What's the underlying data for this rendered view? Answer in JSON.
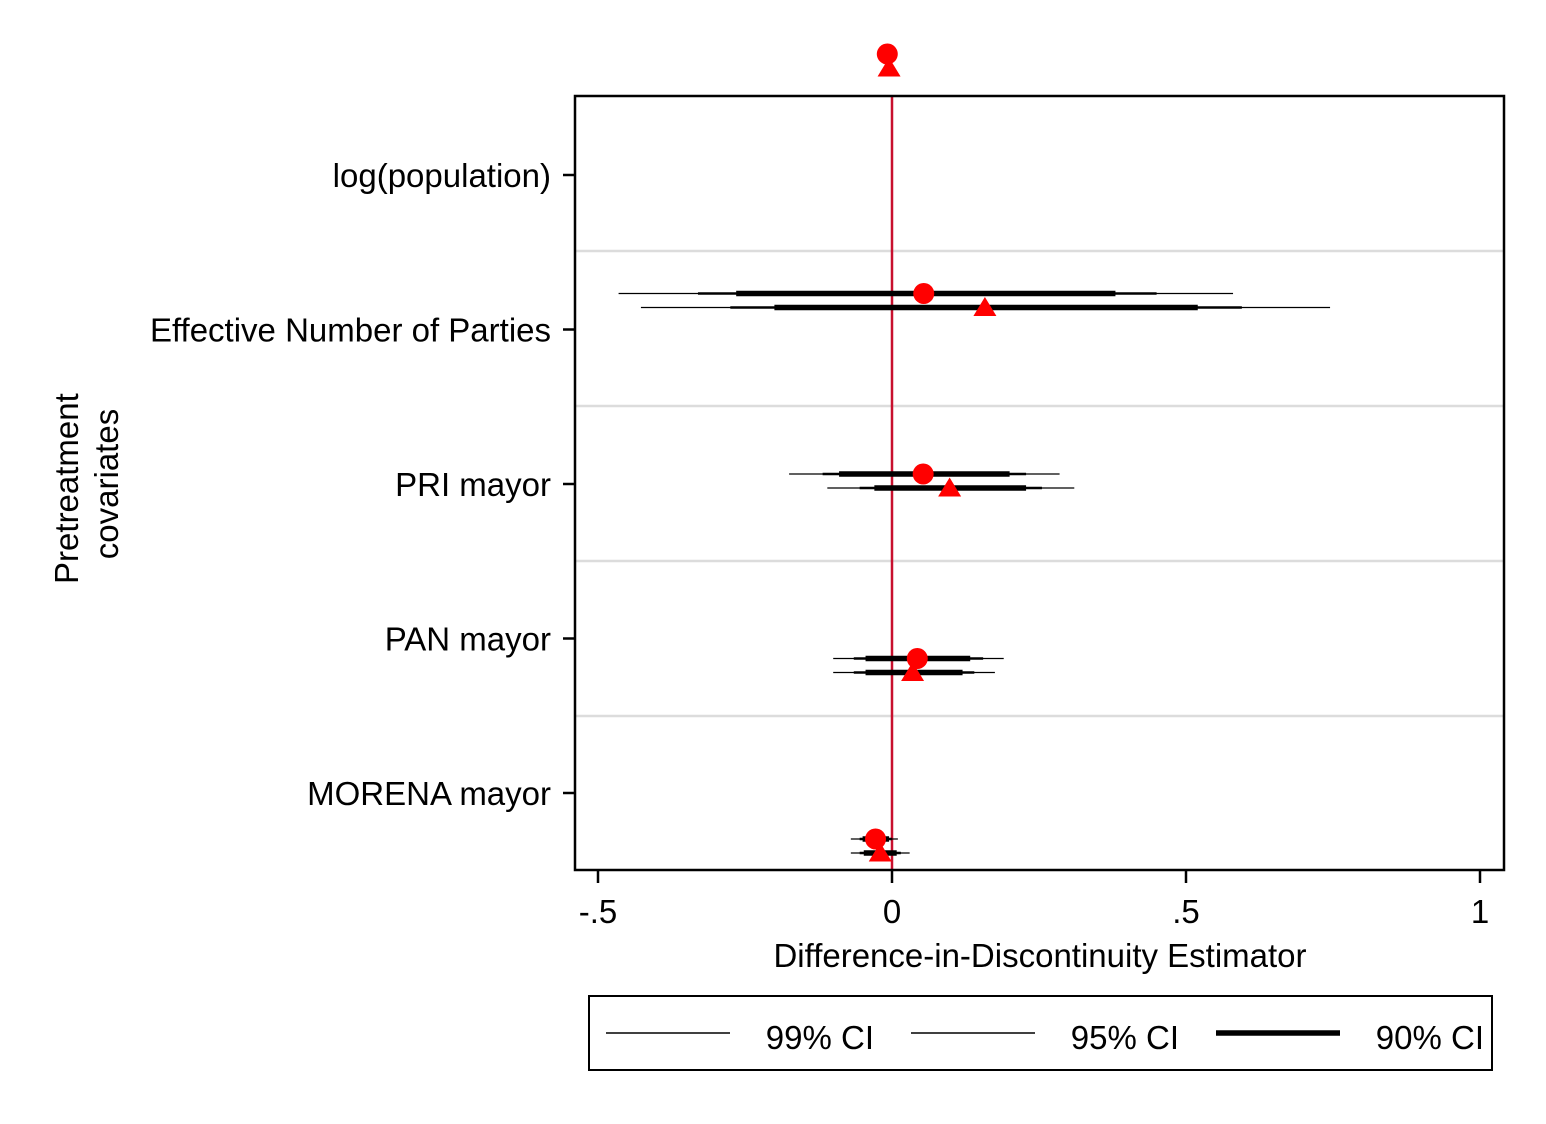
{
  "chart_data": {
    "type": "scatter",
    "subtype": "coefficient-plot",
    "xlabel": "Difference-in-Discontinuity Estimator",
    "ylabel_lines": [
      "Pretreatment",
      "covariates"
    ],
    "xlim": [
      -0.54,
      1.04
    ],
    "x_ticks": [
      {
        "value": -0.5,
        "label": "-.5"
      },
      {
        "value": 0,
        "label": "0"
      },
      {
        "value": 0.5,
        "label": ".5"
      },
      {
        "value": 1,
        "label": "1"
      }
    ],
    "reference_line": {
      "x": 0,
      "color": "#c8102e"
    },
    "marker_color": "#ff0000",
    "gridlines": true,
    "categories": [
      "log(population)",
      "Effective Number of Parties",
      "PRI mayor",
      "PAN mayor",
      "MORENA mayor"
    ],
    "series": [
      {
        "marker": "circle",
        "estimates": [
          {
            "category": "log(population)",
            "est": -0.008,
            "ci90": [
              -0.01,
              -0.006
            ],
            "ci95": [
              -0.011,
              -0.005
            ],
            "ci99": [
              -0.013,
              -0.003
            ]
          },
          {
            "category": "Effective Number of Parties",
            "est": 0.054,
            "ci90": [
              -0.265,
              0.38
            ],
            "ci95": [
              -0.33,
              0.45
            ],
            "ci99": [
              -0.465,
              0.58
            ]
          },
          {
            "category": "PRI mayor",
            "est": 0.053,
            "ci90": [
              -0.09,
              0.2
            ],
            "ci95": [
              -0.118,
              0.228
            ],
            "ci99": [
              -0.175,
              0.285
            ]
          },
          {
            "category": "PAN mayor",
            "est": 0.043,
            "ci90": [
              -0.045,
              0.133
            ],
            "ci95": [
              -0.065,
              0.155
            ],
            "ci99": [
              -0.1,
              0.19
            ]
          },
          {
            "category": "MORENA mayor",
            "est": -0.028,
            "ci90": [
              -0.05,
              -0.005
            ],
            "ci95": [
              -0.055,
              0.0
            ],
            "ci99": [
              -0.07,
              0.01
            ]
          }
        ]
      },
      {
        "marker": "triangle",
        "estimates": [
          {
            "category": "log(population)",
            "est": -0.005,
            "ci90": [
              -0.007,
              -0.003
            ],
            "ci95": [
              -0.008,
              -0.002
            ],
            "ci99": [
              -0.009,
              -0.001
            ]
          },
          {
            "category": "Effective Number of Parties",
            "est": 0.158,
            "ci90": [
              -0.2,
              0.52
            ],
            "ci95": [
              -0.275,
              0.595
            ],
            "ci99": [
              -0.427,
              0.745
            ]
          },
          {
            "category": "PRI mayor",
            "est": 0.098,
            "ci90": [
              -0.03,
              0.228
            ],
            "ci95": [
              -0.055,
              0.255
            ],
            "ci99": [
              -0.11,
              0.31
            ]
          },
          {
            "category": "PAN mayor",
            "est": 0.035,
            "ci90": [
              -0.045,
              0.12
            ],
            "ci95": [
              -0.065,
              0.14
            ],
            "ci99": [
              -0.1,
              0.175
            ]
          },
          {
            "category": "MORENA mayor",
            "est": -0.02,
            "ci90": [
              -0.048,
              0.008
            ],
            "ci95": [
              -0.055,
              0.015
            ],
            "ci99": [
              -0.07,
              0.03
            ]
          }
        ]
      }
    ],
    "legend": {
      "placement": "bottom",
      "entries": [
        {
          "label": "99% CI",
          "weight": "thin"
        },
        {
          "label": "95% CI",
          "weight": "thin"
        },
        {
          "label": "90% CI",
          "weight": "thick"
        }
      ]
    }
  }
}
